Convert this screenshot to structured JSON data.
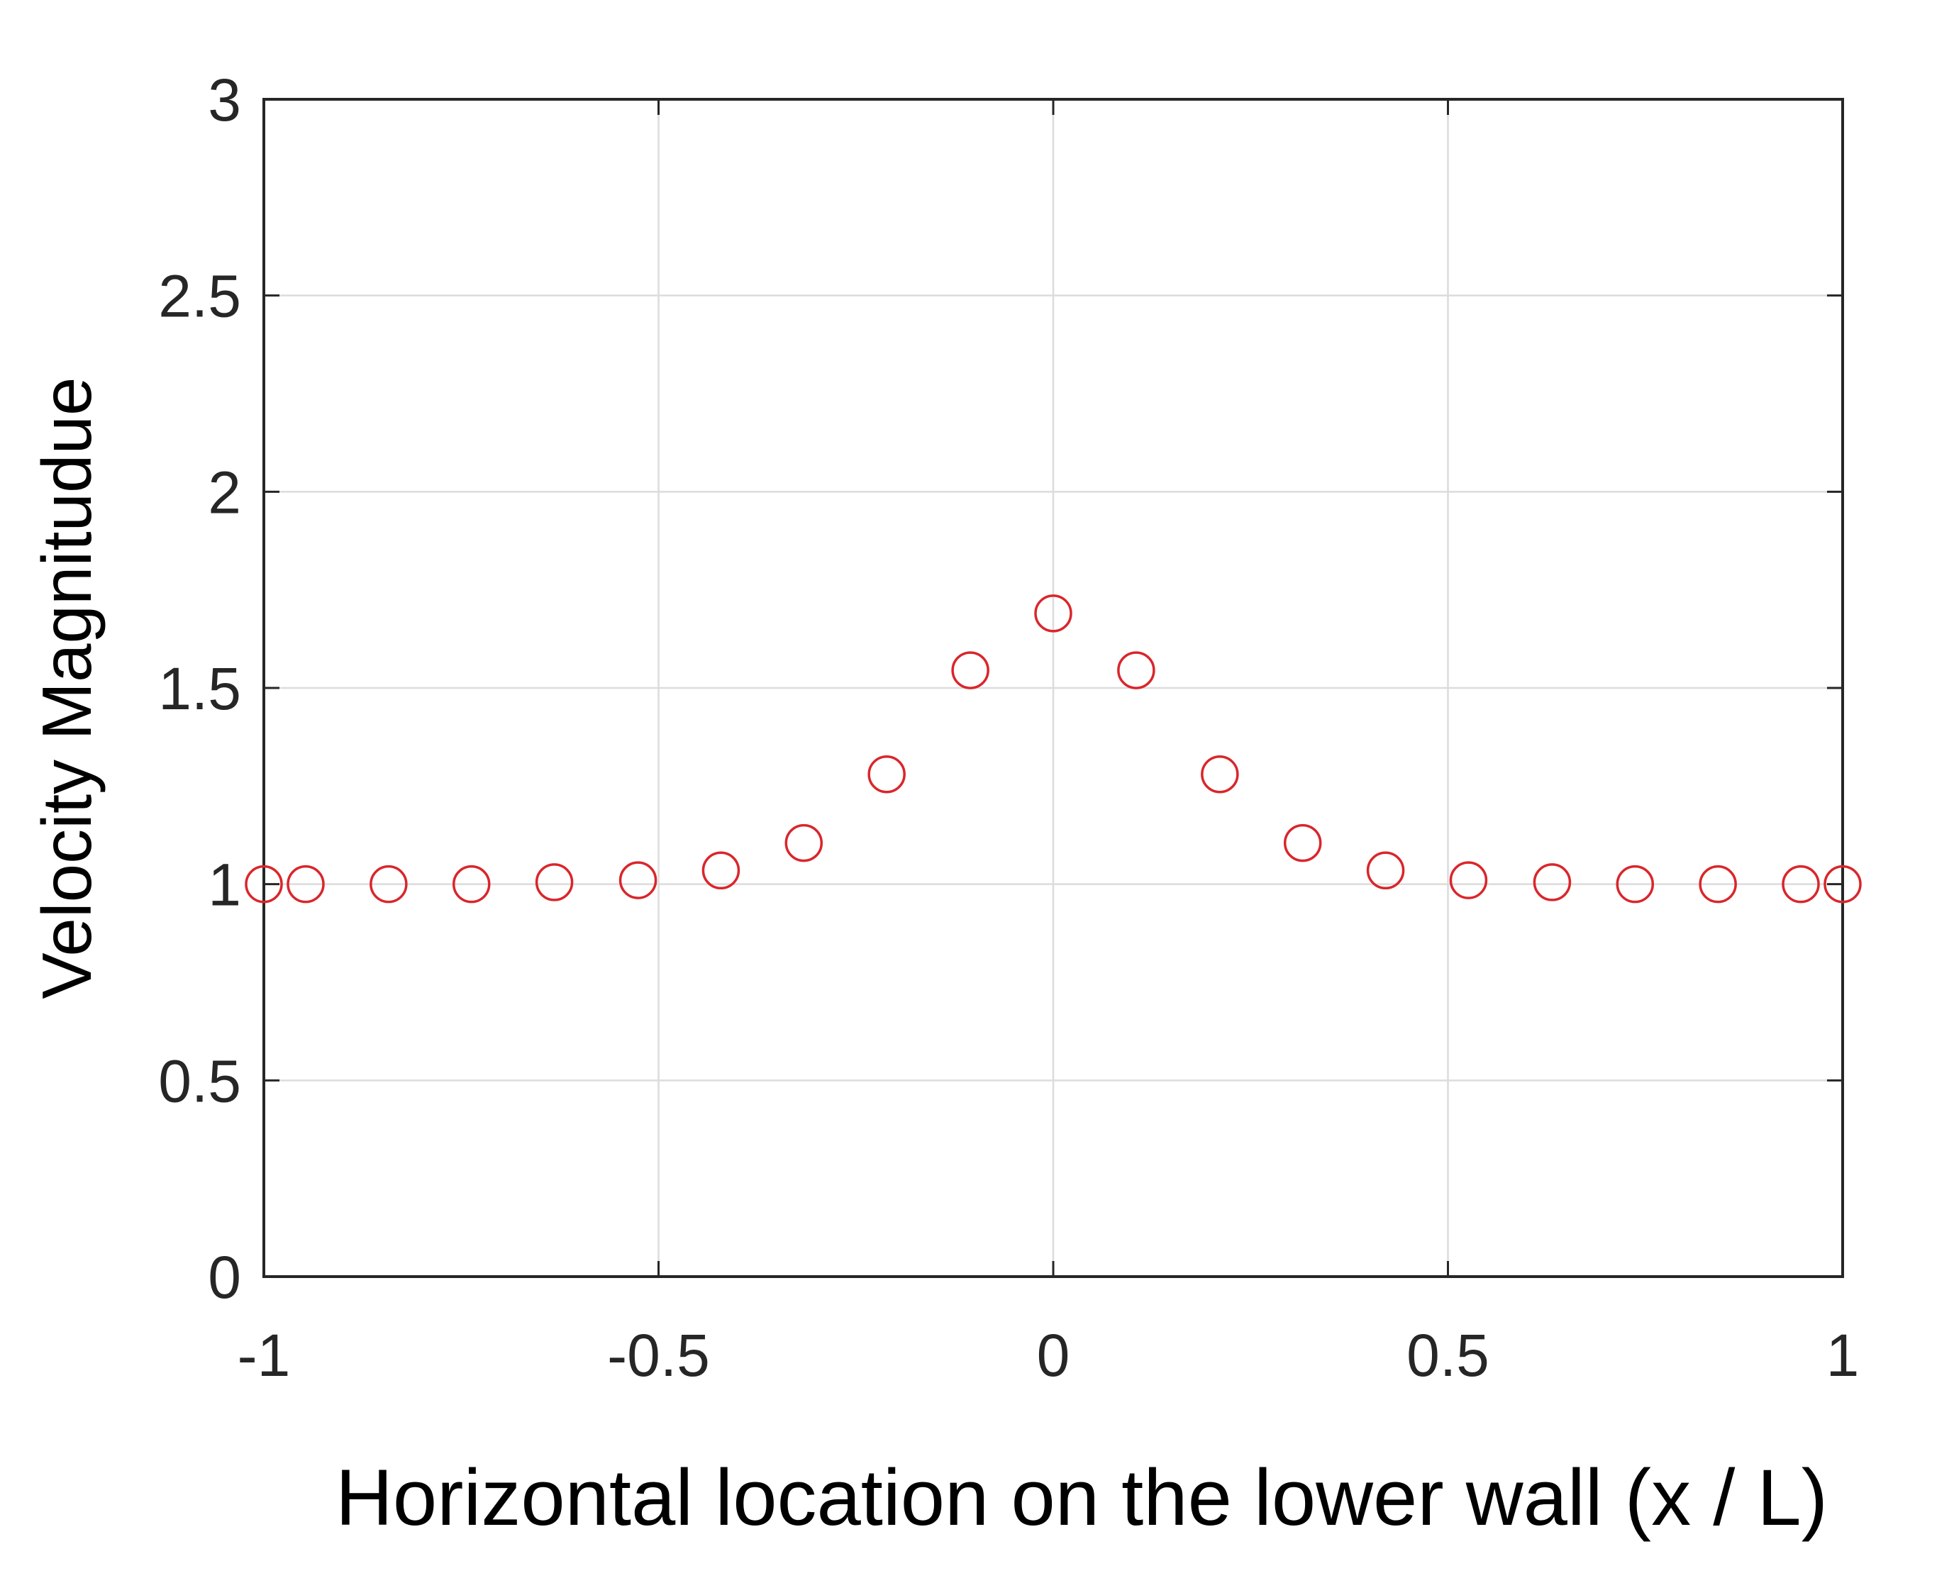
{
  "chart_data": {
    "type": "scatter",
    "title": "",
    "xlabel": "Horizontal location on the lower wall (x / L)",
    "ylabel": "Velocity Magnitudue",
    "xlim": [
      -1,
      1
    ],
    "ylim": [
      0,
      3
    ],
    "xticks": [
      -1,
      -0.5,
      0,
      0.5,
      1
    ],
    "xtick_labels": [
      "-1",
      "-0.5",
      "0",
      "0.5",
      "1"
    ],
    "yticks": [
      0,
      0.5,
      1,
      1.5,
      2,
      2.5,
      3
    ],
    "ytick_labels": [
      "0",
      "0.5",
      "1",
      "1.5",
      "2",
      "2.5",
      "3"
    ],
    "grid": true,
    "marker": "open-circle",
    "marker_color": "#d9262b",
    "series": [
      {
        "x": [
          -1.0,
          -0.947,
          -0.842,
          -0.737,
          -0.632,
          -0.526,
          -0.421,
          -0.316,
          -0.211,
          -0.105,
          0.0,
          0.105,
          0.211,
          0.316,
          0.421,
          0.526,
          0.632,
          0.737,
          0.842,
          0.947,
          1.0
        ],
        "y": [
          1.0,
          1.0,
          1.0,
          1.0,
          1.005,
          1.01,
          1.035,
          1.105,
          1.28,
          1.545,
          1.69,
          1.545,
          1.28,
          1.105,
          1.035,
          1.01,
          1.005,
          1.0,
          1.0,
          1.0,
          1.0
        ]
      }
    ]
  }
}
